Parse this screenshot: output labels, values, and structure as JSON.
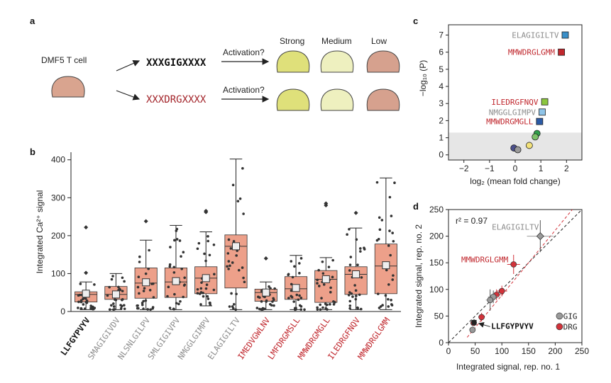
{
  "colors": {
    "red": "#c0272d",
    "gray": "#8c8c8c",
    "black": "#111111",
    "box_fill": "#eda08a",
    "strong": "#dfe07a",
    "medium": "#eef0bf",
    "low": "#d6a18e",
    "cell": "#d9a48f",
    "shade": "#e6e6e6"
  },
  "panel_a": {
    "label": "a",
    "cell_label": "DMF5 T cell",
    "seq_gig": "XXXGIGXXXX",
    "seq_drg": "XXXDRGXXXX",
    "activation_1": "Activation?",
    "activation_2": "Activation?",
    "strong": "Strong",
    "medium": "Medium",
    "low": "Low"
  },
  "panel_labels": {
    "b": "b",
    "c": "c",
    "d": "d"
  },
  "chart_data": [
    {
      "id": "b",
      "type": "box",
      "ylabel": "Integrated Ca²⁺ signal",
      "ylim": [
        0,
        420
      ],
      "yticks": [
        0,
        100,
        200,
        300,
        400
      ],
      "categories": [
        {
          "name": "LLFGYPVYV",
          "group": "black",
          "q1": 25,
          "median": 45,
          "q3": 52,
          "whisker_low": 5,
          "whisker_high": 78,
          "mean": 47,
          "outliers": [
            102,
            222
          ]
        },
        {
          "name": "SMAGIGIVDV",
          "group": "gray",
          "q1": 32,
          "median": 45,
          "q3": 66,
          "whisker_low": 5,
          "whisker_high": 100,
          "mean": 45,
          "outliers": []
        },
        {
          "name": "NLSNLGILPV",
          "group": "gray",
          "q1": 35,
          "median": 75,
          "q3": 115,
          "whisker_low": 5,
          "whisker_high": 188,
          "mean": 77,
          "outliers": [
            238
          ]
        },
        {
          "name": "SMLGIGIVPV",
          "group": "gray",
          "q1": 37,
          "median": 78,
          "q3": 115,
          "whisker_low": 5,
          "whisker_high": 227,
          "mean": 80,
          "outliers": []
        },
        {
          "name": "NMGGLGIMPV",
          "group": "gray",
          "q1": 47,
          "median": 88,
          "q3": 118,
          "whisker_low": 15,
          "whisker_high": 210,
          "mean": 88,
          "outliers": [
            262,
            265
          ]
        },
        {
          "name": "ELAGIGILTV",
          "group": "gray",
          "q1": 62,
          "median": 172,
          "q3": 202,
          "whisker_low": 5,
          "whisker_high": 402,
          "mean": 172,
          "outliers": []
        },
        {
          "name": "IMEDVGWLNV",
          "group": "red",
          "q1": 27,
          "median": 50,
          "q3": 59,
          "whisker_low": 5,
          "whisker_high": 78,
          "mean": 50,
          "outliers": [
            140
          ]
        },
        {
          "name": "LMFDRGMSLL",
          "group": "red",
          "q1": 32,
          "median": 60,
          "q3": 92,
          "whisker_low": 5,
          "whisker_high": 148,
          "mean": 62,
          "outliers": []
        },
        {
          "name": "MMWDRGMGLL",
          "group": "red",
          "q1": 24,
          "median": 85,
          "q3": 108,
          "whisker_low": 5,
          "whisker_high": 142,
          "mean": 85,
          "outliers": [
            280,
            285
          ]
        },
        {
          "name": "ILEDRGFNQV",
          "group": "red",
          "q1": 45,
          "median": 98,
          "q3": 118,
          "whisker_low": 5,
          "whisker_high": 220,
          "mean": 98,
          "outliers": [
            260
          ]
        },
        {
          "name": "MMWDRGLGMM",
          "group": "red",
          "q1": 47,
          "median": 120,
          "q3": 178,
          "whisker_low": 5,
          "whisker_high": 352,
          "mean": 122,
          "outliers": []
        }
      ]
    },
    {
      "id": "c",
      "type": "scatter",
      "xlabel": "log₂ (mean fold change)",
      "ylabel": "−log₁₀ (P)",
      "xlim": [
        -2.6,
        2.6
      ],
      "ylim": [
        -0.3,
        7.6
      ],
      "xticks": [
        -2,
        -1,
        0,
        1,
        2
      ],
      "yticks": [
        0,
        1,
        2,
        3,
        4,
        5,
        6,
        7
      ],
      "shaded_below": 1.3,
      "points": [
        {
          "x": 1.95,
          "y": 7.0,
          "color": "#3a8fc8",
          "label": "ELAGIGILTV",
          "group": "gray"
        },
        {
          "x": 1.8,
          "y": 6.0,
          "color": "#c0272d",
          "label": "MMWDRGLGMM",
          "group": "red"
        },
        {
          "x": 1.15,
          "y": 3.1,
          "color": "#8cc63f",
          "label": "ILEDRGFNQV",
          "group": "red"
        },
        {
          "x": 1.05,
          "y": 2.5,
          "color": "#8fc4e8",
          "label": "NMGGLGIMPV",
          "group": "gray"
        },
        {
          "x": 0.95,
          "y": 1.95,
          "color": "#2b5aa6",
          "label": "MMWDRGMGLL",
          "group": "red"
        },
        {
          "x": 0.85,
          "y": 1.25,
          "color": "#2e9e4a",
          "label": "",
          "group": ""
        },
        {
          "x": 0.78,
          "y": 1.05,
          "color": "#7cc26a",
          "label": "",
          "group": ""
        },
        {
          "x": 0.55,
          "y": 0.55,
          "color": "#f3e27a",
          "label": "",
          "group": ""
        },
        {
          "x": -0.05,
          "y": 0.4,
          "color": "#4b4f8c",
          "label": "",
          "group": ""
        },
        {
          "x": 0.1,
          "y": 0.3,
          "color": "#9a9a9a",
          "label": "",
          "group": ""
        }
      ]
    },
    {
      "id": "d",
      "type": "scatter",
      "xlabel": "Integrated signal, rep. no. 1",
      "ylabel": "Integrated signal, rep. no. 2",
      "xlim": [
        0,
        250
      ],
      "ylim": [
        0,
        250
      ],
      "xticks": [
        0,
        50,
        100,
        150,
        200,
        250
      ],
      "yticks": [
        0,
        50,
        100,
        150,
        200,
        250
      ],
      "r2": "r² = 0.97",
      "annotations": [
        {
          "text": "ELAGIGILTV",
          "group": "gray"
        },
        {
          "text": "MMWDRGLGMM",
          "group": "red"
        },
        {
          "text": "LLFGYPVYV",
          "group": "black"
        }
      ],
      "legend": [
        {
          "name": "GIG",
          "color": "#9a9a9a"
        },
        {
          "name": "DRG",
          "color": "#d2323a"
        }
      ],
      "points": [
        {
          "x": 172,
          "y": 200,
          "series": "GIG",
          "xerr": 25,
          "yerr": 30
        },
        {
          "x": 122,
          "y": 147,
          "series": "DRG",
          "xerr": 12,
          "yerr": 18
        },
        {
          "x": 100,
          "y": 97,
          "series": "DRG",
          "xerr": 10,
          "yerr": 10
        },
        {
          "x": 90,
          "y": 90,
          "series": "DRG",
          "xerr": 8,
          "yerr": 10
        },
        {
          "x": 84,
          "y": 86,
          "series": "GIG",
          "xerr": 10,
          "yerr": 12
        },
        {
          "x": 78,
          "y": 80,
          "series": "GIG",
          "xerr": 8,
          "yerr": 20
        },
        {
          "x": 62,
          "y": 48,
          "series": "DRG",
          "xerr": 6,
          "yerr": 8
        },
        {
          "x": 47,
          "y": 37,
          "series": "DRG",
          "xerr": 6,
          "yerr": 5
        },
        {
          "x": 45,
          "y": 24,
          "series": "GIG",
          "xerr": 5,
          "yerr": 6
        },
        {
          "x": 48,
          "y": 38,
          "series": "black",
          "xerr": 5,
          "yerr": 6
        }
      ]
    }
  ]
}
